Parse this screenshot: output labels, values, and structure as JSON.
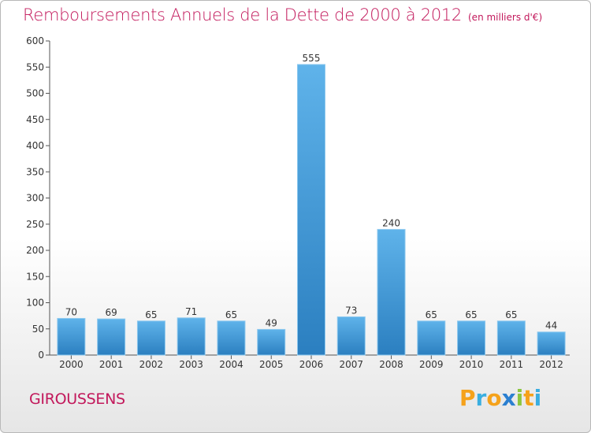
{
  "title": "Remboursements Annuels de la Dette de 2000 à 2012",
  "subtitle": "(en milliers d'€)",
  "commune": "GIROUSSENS",
  "logo": {
    "text": "Proxiti",
    "letters": [
      {
        "ch": "P",
        "color": "#f5a21b"
      },
      {
        "ch": "r",
        "color": "#3aaee0"
      },
      {
        "ch": "o",
        "color": "#f5a21b"
      },
      {
        "ch": "x",
        "color": "#2a7fd0"
      },
      {
        "ch": "i",
        "color": "#8cc63f"
      },
      {
        "ch": "t",
        "color": "#f5a21b"
      },
      {
        "ch": "i",
        "color": "#3aaee0"
      }
    ]
  },
  "colors": {
    "title": "#c2185b",
    "bar_top": "#5fb3ea",
    "bar_bottom": "#2b7fc0",
    "axis": "#555555"
  },
  "chart_data": {
    "type": "bar",
    "categories": [
      "2000",
      "2001",
      "2002",
      "2003",
      "2004",
      "2005",
      "2006",
      "2007",
      "2008",
      "2009",
      "2010",
      "2011",
      "2012"
    ],
    "values": [
      70,
      69,
      65,
      71,
      65,
      49,
      555,
      73,
      240,
      65,
      65,
      65,
      44
    ],
    "data_labels": [
      "70",
      "69",
      "65",
      "71",
      "65",
      "49",
      "555",
      "73",
      "240",
      "65",
      "65",
      "65",
      "44"
    ],
    "ylim": [
      0,
      600
    ],
    "yticks": [
      0,
      50,
      100,
      150,
      200,
      250,
      300,
      350,
      400,
      450,
      500,
      550,
      600
    ],
    "ytick_labels": [
      "0",
      "50",
      "100",
      "150",
      "200",
      "250",
      "300",
      "350",
      "400",
      "450",
      "500",
      "550",
      "600"
    ],
    "xlabel": "",
    "ylabel": "",
    "grid": false,
    "legend": "none"
  }
}
